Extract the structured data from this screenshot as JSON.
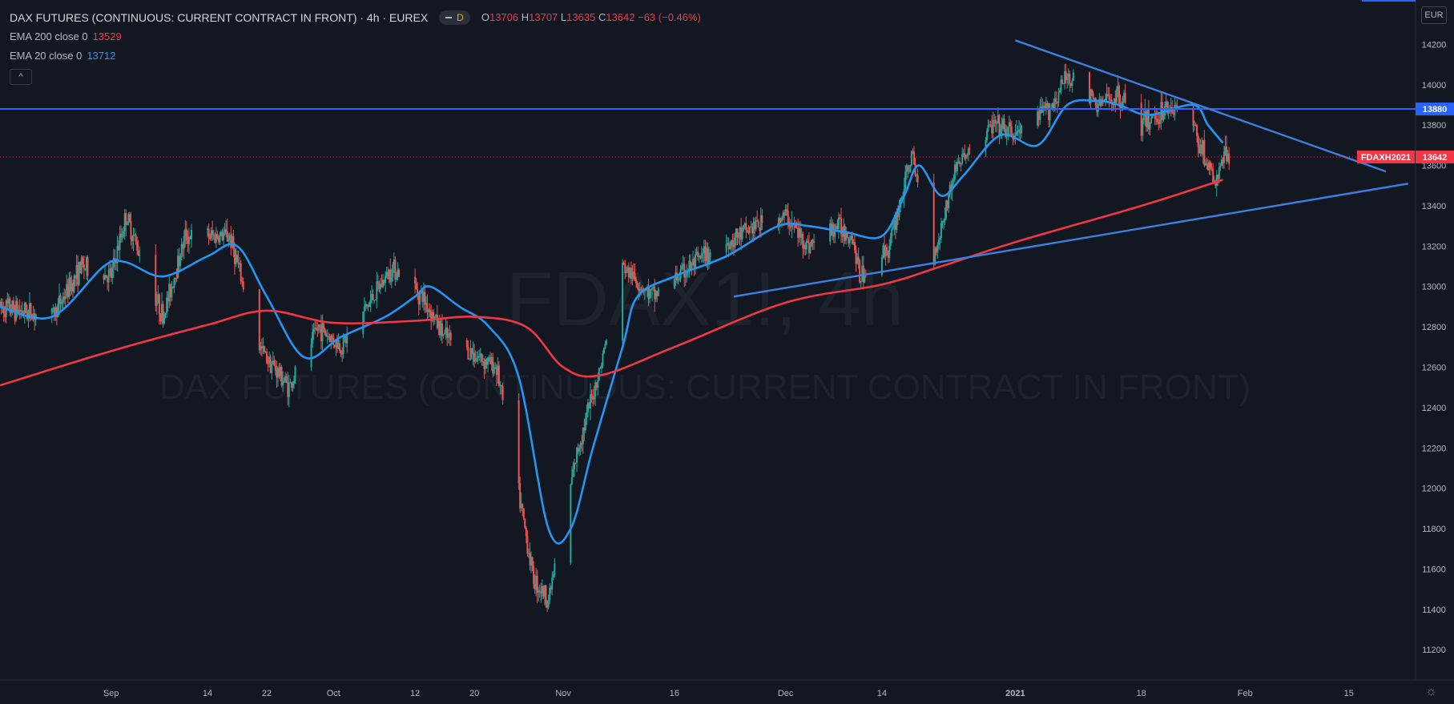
{
  "header": {
    "title": "DAX FUTURES (CONTINUOUS: CURRENT CONTRACT IN FRONT) · 4h · EUREX",
    "pill_letter": "D",
    "ohlc": {
      "o_label": "O",
      "o": "13706",
      "h_label": "H",
      "h": "13707",
      "l_label": "L",
      "l": "13635",
      "c_label": "C",
      "c": "13642",
      "change": "−63 (−0.46%)"
    },
    "ema200": {
      "label": "EMA 200 close 0",
      "value": "13529"
    },
    "ema20": {
      "label": "EMA 20 close 0",
      "value": "13712"
    },
    "collapse_icon": "chevron-up-icon"
  },
  "currency": "EUR",
  "watermark": {
    "symbol": "FDAX1!, 4h",
    "name": "DAX FUTURES (CONTINUOUS: CURRENT CONTRACT IN FRONT)"
  },
  "colors": {
    "bg": "#131722",
    "up": "#26a69a",
    "down": "#ef5350",
    "ema20": "#2196f3",
    "ema200": "#f23645",
    "trend": "#3d7fe0",
    "hline": "#2962ff"
  },
  "chart_data": {
    "type": "candlestick",
    "ylim": [
      11050,
      14420
    ],
    "yticks": [
      11200,
      11400,
      11600,
      11800,
      12000,
      12200,
      12400,
      12600,
      12800,
      13000,
      13200,
      13400,
      13600,
      13800,
      14000,
      14200
    ],
    "xlim": [
      "2020-08-17",
      "2021-02-24"
    ],
    "xticks": [
      {
        "date": "2020-09-01",
        "label": "Sep"
      },
      {
        "date": "2020-09-14",
        "label": "14"
      },
      {
        "date": "2020-09-22",
        "label": "22"
      },
      {
        "date": "2020-10-01",
        "label": "Oct"
      },
      {
        "date": "2020-10-12",
        "label": "12"
      },
      {
        "date": "2020-10-20",
        "label": "20"
      },
      {
        "date": "2020-11-01",
        "label": "Nov"
      },
      {
        "date": "2020-11-16",
        "label": "16"
      },
      {
        "date": "2020-12-01",
        "label": "Dec"
      },
      {
        "date": "2020-12-14",
        "label": "14"
      },
      {
        "date": "2021-01-01",
        "label": "2021"
      },
      {
        "date": "2021-01-18",
        "label": "18"
      },
      {
        "date": "2021-02-01",
        "label": "Feb"
      },
      {
        "date": "2021-02-15",
        "label": "15"
      }
    ],
    "price_path": [
      [
        "2020-08-17",
        12900
      ],
      [
        "2020-08-24",
        12850
      ],
      [
        "2020-08-28",
        13100
      ],
      [
        "2020-09-01",
        13050
      ],
      [
        "2020-09-03",
        13350
      ],
      [
        "2020-09-08",
        12850
      ],
      [
        "2020-09-11",
        13250
      ],
      [
        "2020-09-17",
        13250
      ],
      [
        "2020-09-21",
        12700
      ],
      [
        "2020-09-25",
        12500
      ],
      [
        "2020-09-29",
        12800
      ],
      [
        "2020-10-02",
        12700
      ],
      [
        "2020-10-09",
        13100
      ],
      [
        "2020-10-13",
        12950
      ],
      [
        "2020-10-16",
        12750
      ],
      [
        "2020-10-23",
        12600
      ],
      [
        "2020-10-28",
        11550
      ],
      [
        "2020-10-30",
        11450
      ],
      [
        "2020-11-03",
        12200
      ],
      [
        "2020-11-06",
        12600
      ],
      [
        "2020-11-09",
        13100
      ],
      [
        "2020-11-13",
        12950
      ],
      [
        "2020-11-20",
        13150
      ],
      [
        "2020-11-27",
        13300
      ],
      [
        "2020-12-01",
        13350
      ],
      [
        "2020-12-04",
        13200
      ],
      [
        "2020-12-08",
        13300
      ],
      [
        "2020-12-10",
        13250
      ],
      [
        "2020-12-11",
        13050
      ],
      [
        "2020-12-15",
        13200
      ],
      [
        "2020-12-18",
        13650
      ],
      [
        "2020-12-21",
        13150
      ],
      [
        "2020-12-24",
        13600
      ],
      [
        "2020-12-29",
        13800
      ],
      [
        "2021-01-01",
        13750
      ],
      [
        "2021-01-06",
        13900
      ],
      [
        "2021-01-08",
        14050
      ],
      [
        "2021-01-12",
        13900
      ],
      [
        "2021-01-15",
        13950
      ],
      [
        "2021-01-18",
        13800
      ],
      [
        "2021-01-22",
        13900
      ],
      [
        "2021-01-25",
        13800
      ],
      [
        "2021-01-27",
        13600
      ],
      [
        "2021-01-28",
        13500
      ],
      [
        "2021-01-29",
        13642
      ]
    ],
    "series": [
      {
        "name": "EMA 20 close 0",
        "color": "#2196f3",
        "points": [
          [
            "2020-08-17",
            12900
          ],
          [
            "2020-08-24",
            12850
          ],
          [
            "2020-08-31",
            13100
          ],
          [
            "2020-09-03",
            13120
          ],
          [
            "2020-09-08",
            13050
          ],
          [
            "2020-09-14",
            13150
          ],
          [
            "2020-09-18",
            13200
          ],
          [
            "2020-09-22",
            12950
          ],
          [
            "2020-09-27",
            12650
          ],
          [
            "2020-10-02",
            12750
          ],
          [
            "2020-10-08",
            12850
          ],
          [
            "2020-10-12",
            12950
          ],
          [
            "2020-10-14",
            13000
          ],
          [
            "2020-10-18",
            12900
          ],
          [
            "2020-10-22",
            12800
          ],
          [
            "2020-10-26",
            12550
          ],
          [
            "2020-10-30",
            11800
          ],
          [
            "2020-11-02",
            11800
          ],
          [
            "2020-11-05",
            12200
          ],
          [
            "2020-11-09",
            12700
          ],
          [
            "2020-11-11",
            12950
          ],
          [
            "2020-11-16",
            13050
          ],
          [
            "2020-11-23",
            13150
          ],
          [
            "2020-11-30",
            13300
          ],
          [
            "2020-12-04",
            13300
          ],
          [
            "2020-12-09",
            13270
          ],
          [
            "2020-12-14",
            13250
          ],
          [
            "2020-12-17",
            13450
          ],
          [
            "2020-12-19",
            13600
          ],
          [
            "2020-12-22",
            13450
          ],
          [
            "2020-12-25",
            13550
          ],
          [
            "2020-12-30",
            13750
          ],
          [
            "2021-01-04",
            13700
          ],
          [
            "2021-01-08",
            13900
          ],
          [
            "2021-01-12",
            13920
          ],
          [
            "2021-01-15",
            13900
          ],
          [
            "2021-01-19",
            13850
          ],
          [
            "2021-01-25",
            13900
          ],
          [
            "2021-01-27",
            13800
          ],
          [
            "2021-01-29",
            13712
          ]
        ]
      },
      {
        "name": "EMA 200 close 0",
        "color": "#f23645",
        "points": [
          [
            "2020-08-17",
            12510
          ],
          [
            "2020-09-01",
            12680
          ],
          [
            "2020-09-14",
            12810
          ],
          [
            "2020-09-22",
            12880
          ],
          [
            "2020-10-01",
            12820
          ],
          [
            "2020-10-12",
            12830
          ],
          [
            "2020-10-20",
            12850
          ],
          [
            "2020-10-27",
            12800
          ],
          [
            "2020-11-01",
            12600
          ],
          [
            "2020-11-06",
            12560
          ],
          [
            "2020-11-16",
            12700
          ],
          [
            "2020-12-01",
            12920
          ],
          [
            "2020-12-14",
            13010
          ],
          [
            "2020-12-22",
            13100
          ],
          [
            "2021-01-01",
            13220
          ],
          [
            "2021-01-18",
            13400
          ],
          [
            "2021-01-29",
            13529
          ]
        ]
      }
    ],
    "horizontal_line": {
      "value": 13880,
      "label": "13880"
    },
    "last_price": {
      "value": 13642,
      "symbol": "FDAXH2021",
      "label": "13642"
    },
    "trendlines": [
      {
        "from": [
          "2021-01-01",
          14220
        ],
        "to": [
          "2021-02-20",
          13570
        ]
      },
      {
        "from": [
          "2020-11-24",
          12950
        ],
        "to": [
          "2021-02-23",
          13510
        ]
      }
    ]
  }
}
